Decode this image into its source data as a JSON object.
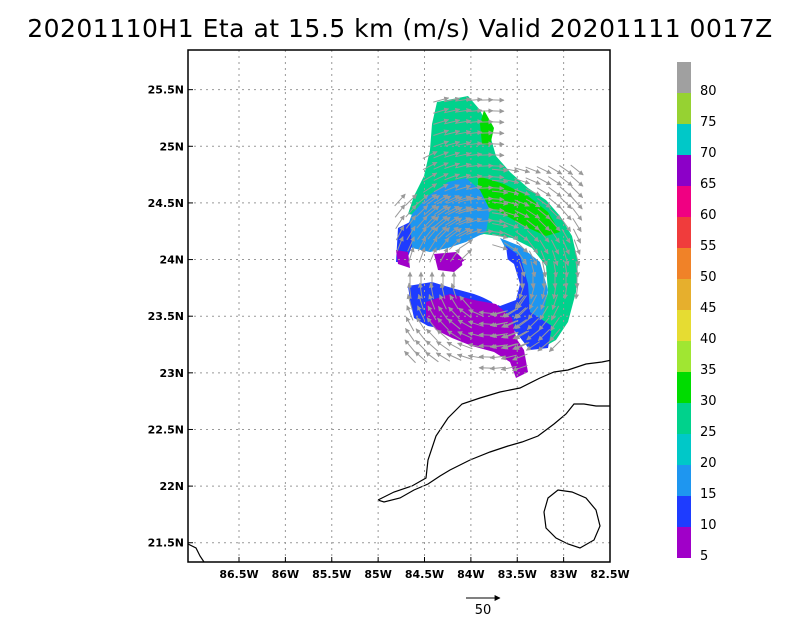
{
  "title": "20201110H1 Eta at 15.5 km (m/s) Valid 20201111 0017Z",
  "map": {
    "lat_labels": [
      "25.5N",
      "25N",
      "24.5N",
      "24N",
      "23.5N",
      "23N",
      "22.5N",
      "22N",
      "21.5N"
    ],
    "lat_values": [
      25.5,
      25.0,
      24.5,
      24.0,
      23.5,
      23.0,
      22.5,
      22.0,
      21.5
    ],
    "lon_labels": [
      "86.5W",
      "86W",
      "85.5W",
      "85W",
      "84.5W",
      "84W",
      "83.5W",
      "83W",
      "82.5W"
    ],
    "lon_values": [
      -86.5,
      -86.0,
      -85.5,
      -85.0,
      -84.5,
      -84.0,
      -83.5,
      -83.0,
      -82.5
    ],
    "lat_range": [
      21.33,
      25.85
    ],
    "lon_range": [
      -87.05,
      -82.5
    ],
    "grid": "dotted"
  },
  "colorbar": {
    "labels": [
      "80",
      "75",
      "70",
      "65",
      "60",
      "55",
      "50",
      "45",
      "40",
      "35",
      "30",
      "25",
      "20",
      "15",
      "10",
      "5"
    ],
    "colors": [
      "#a0a0a0",
      "#96d232",
      "#00c8c8",
      "#8c00c8",
      "#f00082",
      "#f03c3c",
      "#f08228",
      "#e6af2d",
      "#e6dc32",
      "#a0e632",
      "#00dc00",
      "#00d28c",
      "#00c8c8",
      "#1e96f0",
      "#1e3cff",
      "#a000c8"
    ]
  },
  "vector_reference": {
    "label": "50"
  }
}
